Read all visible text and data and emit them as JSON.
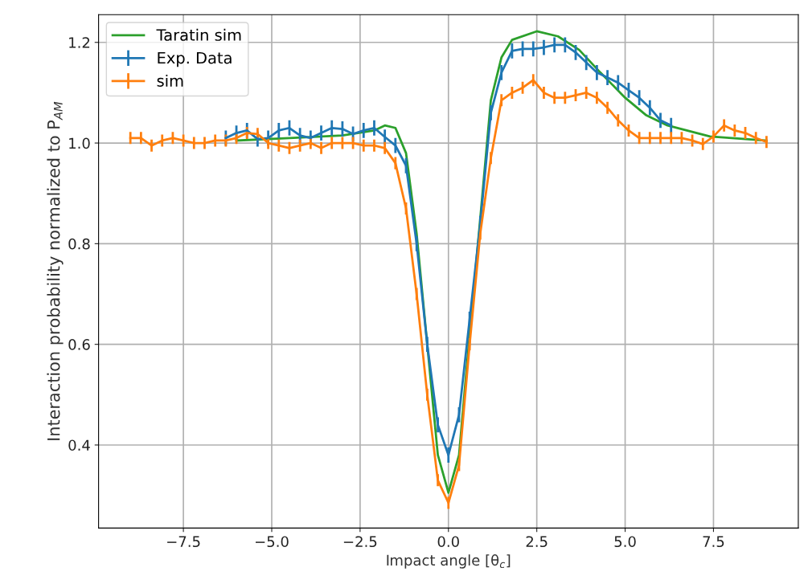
{
  "chart_data": {
    "type": "line",
    "xlabel": "Impact angle [θ$_{c}$]",
    "ylabel": "Interaction probability normalized to P$_{AM}$",
    "xlim": [
      -9.9,
      9.9
    ],
    "ylim": [
      0.235,
      1.255
    ],
    "xticks": [
      {
        "value": -7.5,
        "label": "−7.5"
      },
      {
        "value": -5,
        "label": "−5.0"
      },
      {
        "value": -2.5,
        "label": "−2.5"
      },
      {
        "value": 0,
        "label": "0.0"
      },
      {
        "value": 2.5,
        "label": "2.5"
      },
      {
        "value": 5,
        "label": "5.0"
      },
      {
        "value": 7.5,
        "label": "7.5"
      }
    ],
    "yticks": [
      {
        "value": 0.4,
        "label": "0.4"
      },
      {
        "value": 0.6,
        "label": "0.6"
      },
      {
        "value": 0.8,
        "label": "0.8"
      },
      {
        "value": 1,
        "label": "1.0"
      },
      {
        "value": 1.2,
        "label": "1.2"
      }
    ],
    "grid": true,
    "legend": "top left",
    "marker": "none",
    "line_style": "solid",
    "series": [
      {
        "name": "Taratin sim",
        "color": "#2ca02c",
        "x": [
          -6.0,
          -4.5,
          -3.0,
          -2.1,
          -1.8,
          -1.5,
          -1.2,
          -0.9,
          -0.6,
          -0.3,
          0.0,
          0.3,
          0.6,
          0.9,
          1.2,
          1.5,
          1.8,
          2.5,
          3.1,
          3.7,
          4.3,
          5.0,
          5.6,
          6.2,
          7.4,
          9.0
        ],
        "values": [
          1.005,
          1.01,
          1.015,
          1.025,
          1.035,
          1.03,
          0.98,
          0.82,
          0.6,
          0.38,
          0.305,
          0.38,
          0.62,
          0.85,
          1.085,
          1.17,
          1.205,
          1.222,
          1.212,
          1.185,
          1.14,
          1.09,
          1.055,
          1.035,
          1.013,
          1.005
        ]
      },
      {
        "name": "Exp. Data",
        "color": "#1f77b4",
        "x": [
          -6.3,
          -6.0,
          -5.7,
          -5.4,
          -5.1,
          -4.8,
          -4.5,
          -4.2,
          -3.9,
          -3.6,
          -3.3,
          -3.0,
          -2.7,
          -2.4,
          -2.1,
          -1.8,
          -1.5,
          -1.2,
          -0.9,
          -0.6,
          -0.3,
          0.0,
          0.3,
          0.6,
          0.9,
          1.2,
          1.5,
          1.8,
          2.1,
          2.4,
          2.7,
          3.0,
          3.3,
          3.6,
          3.9,
          4.2,
          4.5,
          4.8,
          5.1,
          5.4,
          5.7,
          6.0,
          6.3
        ],
        "values": [
          1.01,
          1.02,
          1.025,
          1.008,
          1.01,
          1.025,
          1.03,
          1.015,
          1.01,
          1.02,
          1.03,
          1.028,
          1.018,
          1.025,
          1.03,
          1.012,
          0.995,
          0.955,
          0.8,
          0.6,
          0.44,
          0.38,
          0.46,
          0.65,
          0.84,
          1.06,
          1.14,
          1.183,
          1.187,
          1.187,
          1.19,
          1.195,
          1.195,
          1.18,
          1.16,
          1.14,
          1.13,
          1.12,
          1.105,
          1.09,
          1.07,
          1.045,
          1.035
        ],
        "errors": [
          0.015,
          0.015,
          0.015,
          0.015,
          0.015,
          0.015,
          0.015,
          0.015,
          0.015,
          0.015,
          0.015,
          0.015,
          0.015,
          0.015,
          0.015,
          0.015,
          0.015,
          0.015,
          0.015,
          0.015,
          0.015,
          0.015,
          0.015,
          0.015,
          0.015,
          0.015,
          0.015,
          0.015,
          0.015,
          0.015,
          0.015,
          0.015,
          0.015,
          0.015,
          0.015,
          0.015,
          0.015,
          0.015,
          0.015,
          0.015,
          0.015,
          0.015,
          0.015
        ]
      },
      {
        "name": "sim",
        "color": "#ff7f0e",
        "x": [
          -9.0,
          -8.7,
          -8.4,
          -8.1,
          -7.8,
          -7.5,
          -7.2,
          -6.9,
          -6.6,
          -6.3,
          -6.0,
          -5.7,
          -5.4,
          -5.1,
          -4.8,
          -4.5,
          -4.2,
          -3.9,
          -3.6,
          -3.3,
          -3.0,
          -2.7,
          -2.4,
          -2.1,
          -1.8,
          -1.5,
          -1.2,
          -0.9,
          -0.6,
          -0.3,
          0.0,
          0.3,
          0.6,
          0.9,
          1.2,
          1.5,
          1.8,
          2.1,
          2.4,
          2.7,
          3.0,
          3.3,
          3.6,
          3.9,
          4.2,
          4.5,
          4.8,
          5.1,
          5.4,
          5.7,
          6.0,
          6.3,
          6.6,
          6.9,
          7.2,
          7.5,
          7.8,
          8.1,
          8.4,
          8.7,
          9.0
        ],
        "values": [
          1.01,
          1.01,
          0.995,
          1.005,
          1.01,
          1.005,
          1.0,
          1.0,
          1.005,
          1.005,
          1.01,
          1.02,
          1.018,
          1.0,
          0.995,
          0.99,
          0.995,
          1.0,
          0.99,
          1.0,
          1.0,
          1.0,
          0.995,
          0.995,
          0.99,
          0.96,
          0.87,
          0.7,
          0.5,
          0.33,
          0.285,
          0.36,
          0.6,
          0.82,
          0.97,
          1.085,
          1.1,
          1.11,
          1.125,
          1.1,
          1.09,
          1.09,
          1.095,
          1.1,
          1.09,
          1.07,
          1.045,
          1.025,
          1.01,
          1.01,
          1.01,
          1.01,
          1.01,
          1.005,
          0.998,
          1.013,
          1.035,
          1.025,
          1.02,
          1.01,
          1.002
        ],
        "errors": [
          0.012,
          0.012,
          0.012,
          0.012,
          0.012,
          0.012,
          0.012,
          0.012,
          0.012,
          0.012,
          0.012,
          0.012,
          0.012,
          0.012,
          0.012,
          0.012,
          0.012,
          0.012,
          0.012,
          0.012,
          0.012,
          0.012,
          0.012,
          0.012,
          0.012,
          0.012,
          0.012,
          0.012,
          0.012,
          0.012,
          0.012,
          0.012,
          0.012,
          0.012,
          0.012,
          0.012,
          0.012,
          0.012,
          0.012,
          0.012,
          0.012,
          0.012,
          0.012,
          0.012,
          0.012,
          0.012,
          0.012,
          0.012,
          0.012,
          0.012,
          0.012,
          0.012,
          0.012,
          0.012,
          0.012,
          0.012,
          0.012,
          0.012,
          0.012,
          0.012,
          0.012
        ]
      }
    ]
  }
}
